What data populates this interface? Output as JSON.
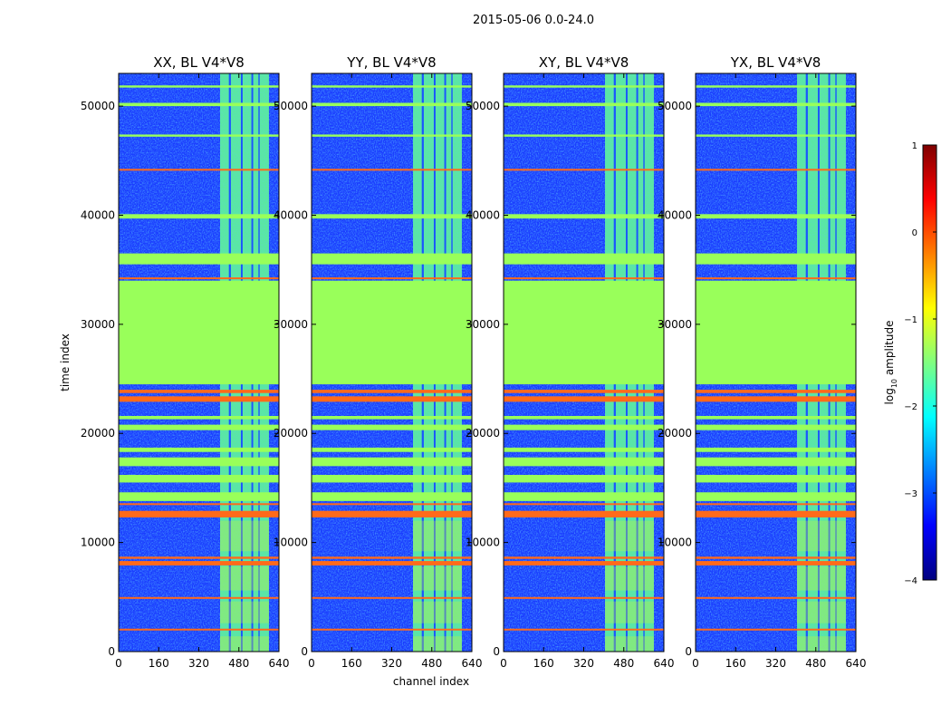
{
  "figure": {
    "suptitle": "2015-05-06 0.0-24.0"
  },
  "chart_data": {
    "type": "heatmap",
    "x_label": "channel index",
    "y_label": "time index",
    "x_range": [
      0,
      640
    ],
    "y_range": [
      0,
      53000
    ],
    "x_ticks": [
      0,
      160,
      320,
      480,
      640
    ],
    "y_ticks": [
      0,
      10000,
      20000,
      30000,
      40000,
      50000
    ],
    "panels": [
      {
        "title": "XX, BL V4*V8"
      },
      {
        "title": "YY, BL V4*V8"
      },
      {
        "title": "XY, BL V4*V8"
      },
      {
        "title": "YX, BL V4*V8"
      }
    ],
    "active_channel_range": [
      405,
      600
    ],
    "active_channel_gaps": [
      [
        440,
        448
      ],
      [
        488,
        495
      ],
      [
        530,
        537
      ],
      [
        558,
        563
      ]
    ],
    "low_time_ranges": [
      [
        0,
        1400
      ],
      [
        2600,
        4600
      ],
      [
        5600,
        7800
      ],
      [
        9200,
        12000
      ]
    ],
    "flag_levels": [
      {
        "name": "flagged-constant",
        "log_amp": -1.0,
        "color": "#99ff5a",
        "time_ranges": [
          [
            24500,
            34000
          ],
          [
            35500,
            36500
          ],
          [
            13800,
            14600
          ],
          [
            15500,
            16200
          ],
          [
            17000,
            17800
          ],
          [
            18300,
            18700
          ],
          [
            20300,
            20800
          ],
          [
            21300,
            21600
          ],
          [
            39700,
            40100
          ],
          [
            47200,
            47400
          ],
          [
            50000,
            50300
          ],
          [
            51700,
            51900
          ]
        ]
      },
      {
        "name": "flagged-high",
        "log_amp": 0.4,
        "color": "#ff6a1a",
        "time_ranges": [
          [
            1950,
            2100
          ],
          [
            4900,
            5000
          ],
          [
            7900,
            8300
          ],
          [
            8500,
            8700
          ],
          [
            12300,
            12900
          ],
          [
            13500,
            13600
          ],
          [
            22900,
            23400
          ],
          [
            23700,
            24000
          ],
          [
            34150,
            34300
          ],
          [
            44100,
            44250
          ]
        ]
      }
    ],
    "colorbar": {
      "label_prefix": "log",
      "label_sub": "10",
      "label_suffix": " amplitude",
      "range": [
        -4,
        1
      ],
      "ticks": [
        {
          "value": 1,
          "label": "1"
        },
        {
          "value": 0,
          "label": "0"
        },
        {
          "value": -1,
          "label": "−1"
        },
        {
          "value": -2,
          "label": "−2"
        },
        {
          "value": -3,
          "label": "−3"
        },
        {
          "value": -4,
          "label": "−4"
        }
      ]
    }
  }
}
